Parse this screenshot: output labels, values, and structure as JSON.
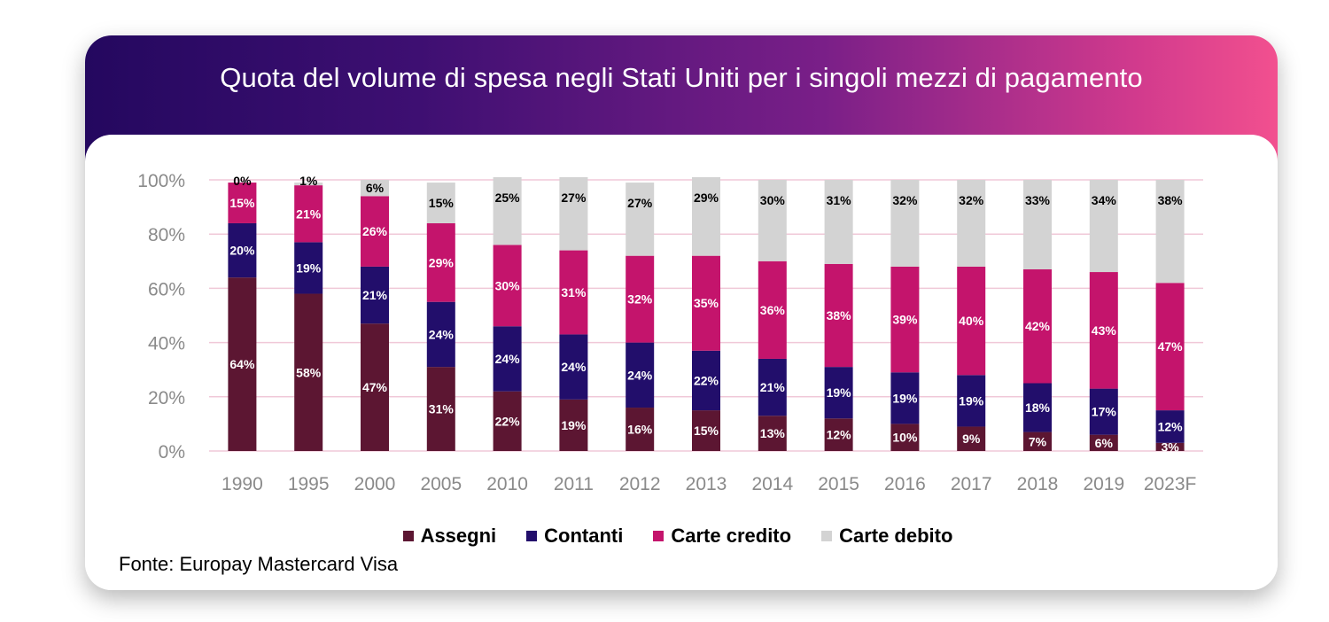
{
  "chart_data": {
    "type": "bar",
    "stacked": true,
    "title": "Quota del volume di spesa negli Stati Uniti per i singoli mezzi di pagamento",
    "source": "Fonte: Europay Mastercard Visa",
    "categories": [
      "1990",
      "1995",
      "2000",
      "2005",
      "2010",
      "2011",
      "2012",
      "2013",
      "2014",
      "2015",
      "2016",
      "2017",
      "2018",
      "2019",
      "2023F"
    ],
    "yticks": [
      "0%",
      "20%",
      "40%",
      "60%",
      "80%",
      "100%"
    ],
    "ylim": [
      0,
      100
    ],
    "series": [
      {
        "name": "Assegni",
        "color": "#5c1632",
        "values": [
          64,
          58,
          47,
          31,
          22,
          19,
          16,
          15,
          13,
          12,
          10,
          9,
          7,
          6,
          3
        ]
      },
      {
        "name": "Contanti",
        "color": "#220e6b",
        "values": [
          20,
          19,
          21,
          24,
          24,
          24,
          24,
          22,
          21,
          19,
          19,
          19,
          18,
          17,
          12
        ]
      },
      {
        "name": "Carte credito",
        "color": "#c4146c",
        "values": [
          15,
          21,
          26,
          29,
          30,
          31,
          32,
          35,
          36,
          38,
          39,
          40,
          42,
          43,
          47
        ]
      },
      {
        "name": "Carte debito",
        "color": "#d3d3d3",
        "values": [
          0,
          1,
          6,
          15,
          25,
          27,
          27,
          29,
          30,
          31,
          32,
          32,
          33,
          34,
          38
        ]
      }
    ]
  }
}
